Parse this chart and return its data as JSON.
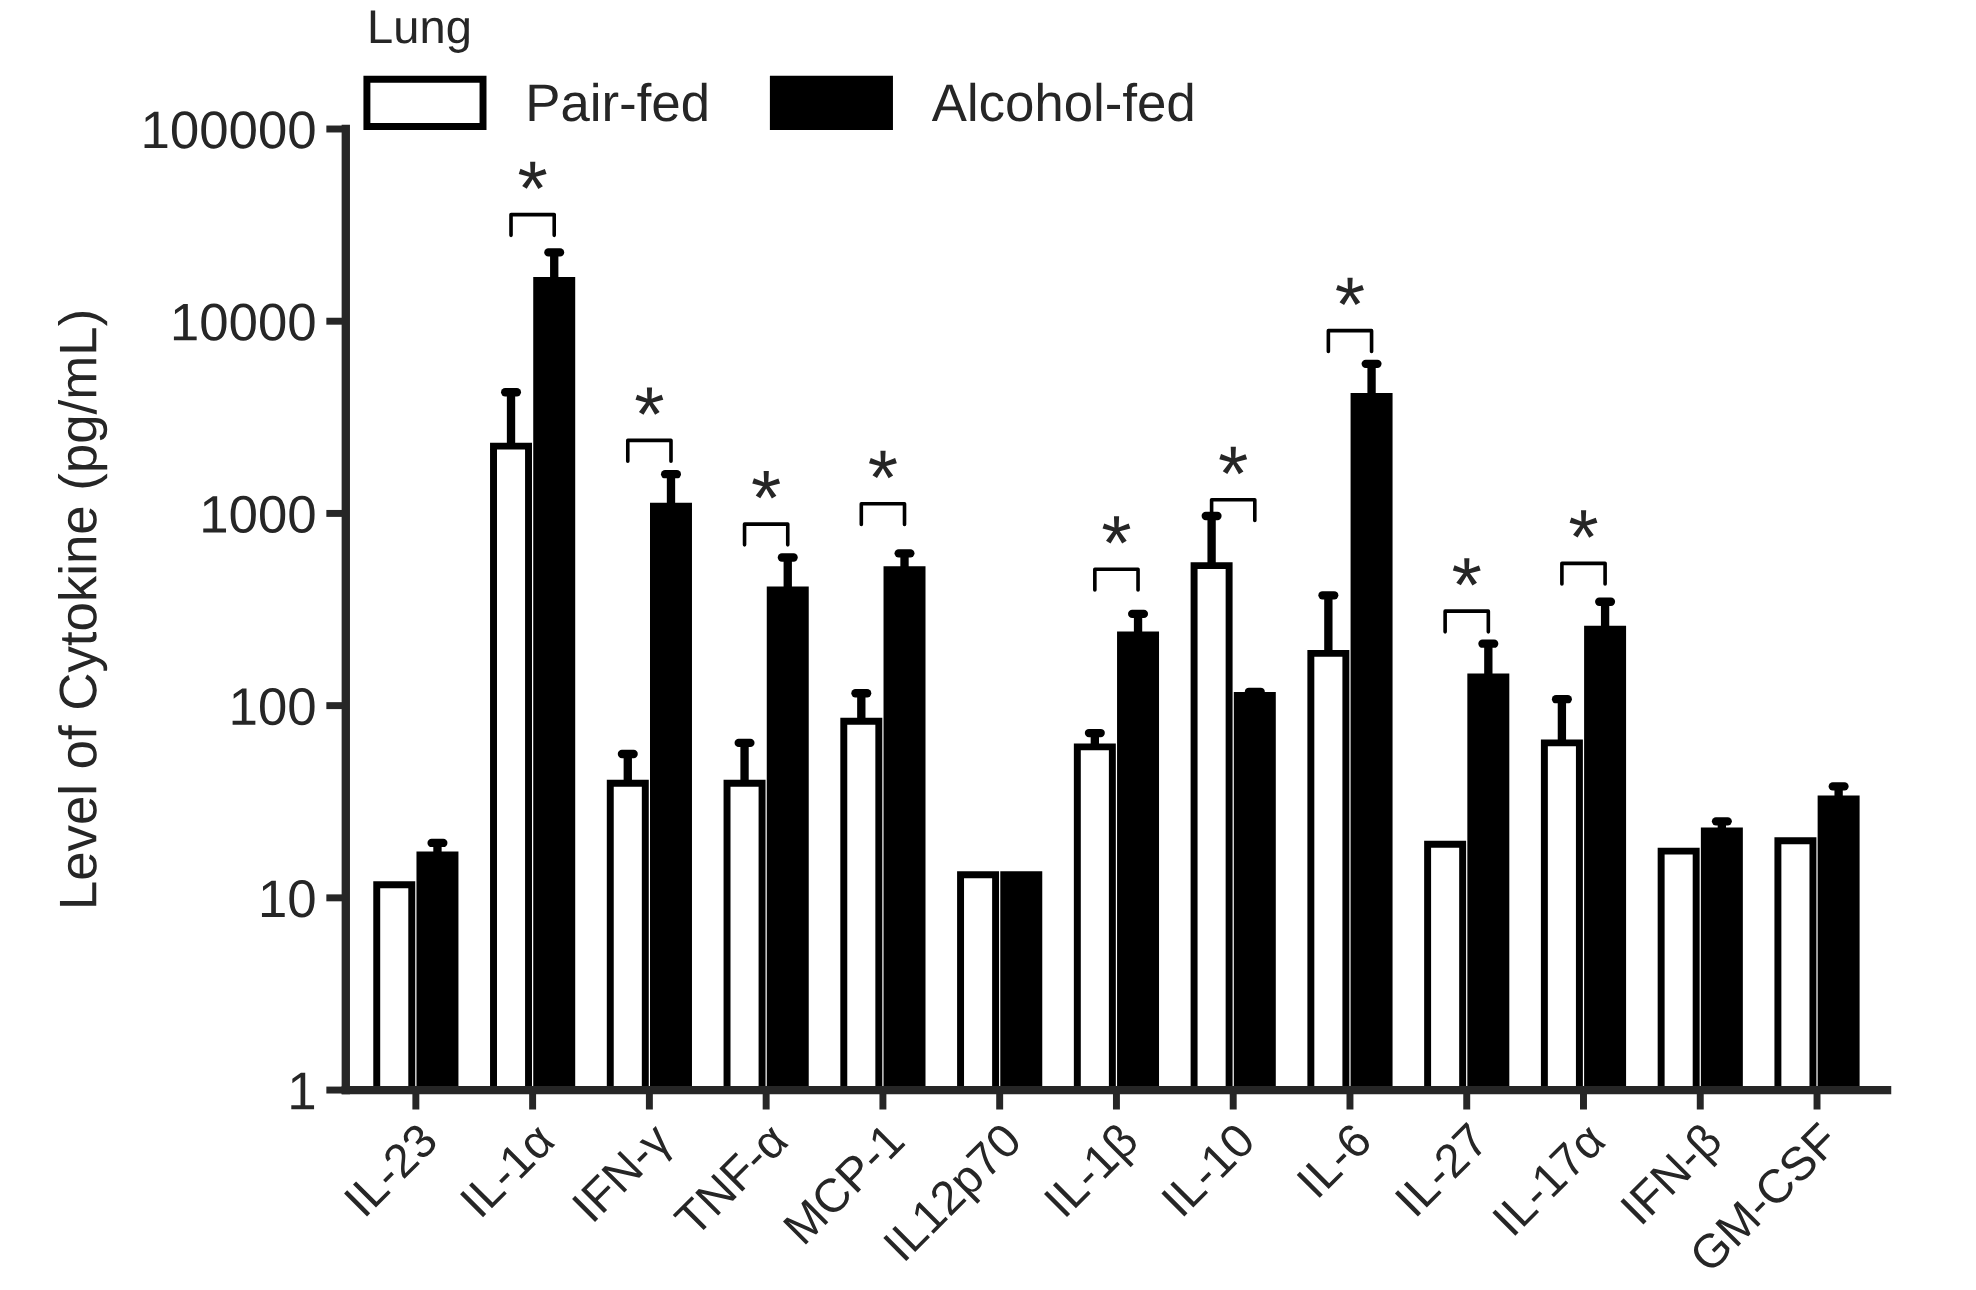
{
  "chart_data": {
    "type": "bar",
    "ylabel": "Level of Cytokine (pg/mL)",
    "legend_title": "Lung",
    "legend": "top left",
    "log": true,
    "categories": [
      "IL-23",
      "IL-1α",
      "IFN-γ",
      "TNF-α",
      "MCP-1",
      "IL12p70",
      "IL-1β",
      "IL-10",
      "IL-6",
      "IL-27",
      "IL-17α",
      "IFN-β",
      "GM-CSF"
    ],
    "ylim": [
      1,
      100000
    ],
    "yticks": [
      1,
      10,
      100,
      1000,
      10000,
      100000
    ],
    "grid": false,
    "series": [
      {
        "name": "Pair-fed",
        "color": "#ffffff",
        "values": [
          11.7,
          2240,
          39.5,
          39.5,
          83,
          13.2,
          61,
          535,
          187,
          19,
          64,
          17.5,
          19.8
        ],
        "errors": [
          null,
          [
            2240,
            4270
          ],
          [
            39.5,
            56
          ],
          [
            39.5,
            64
          ],
          [
            83,
            116
          ],
          null,
          [
            61,
            72
          ],
          [
            535,
            970
          ],
          [
            187,
            375
          ],
          null,
          [
            64,
            108
          ],
          null,
          null
        ]
      },
      {
        "name": "Alcohol-fed",
        "color": "#000000",
        "values": [
          16.7,
          16300,
          1090,
          400,
          510,
          13.2,
          233,
          113,
          4060,
          141,
          250,
          22.3,
          32.7
        ],
        "errors": [
          [
            16.7,
            19.3
          ],
          [
            16300,
            22800
          ],
          [
            1090,
            1600
          ],
          [
            400,
            590
          ],
          [
            510,
            620
          ],
          null,
          [
            233,
            300
          ],
          [
            113,
            118
          ],
          [
            4060,
            6000
          ],
          [
            141,
            210
          ],
          [
            250,
            347
          ],
          [
            22.3,
            25
          ],
          [
            32.7,
            38
          ]
        ]
      }
    ],
    "annotations": [
      {
        "text": "*",
        "x": "IL-1α",
        "y": 16300
      },
      {
        "text": "*",
        "x": "IFN-γ",
        "y": 1090
      },
      {
        "text": "*",
        "x": "TNF-α",
        "y": 400
      },
      {
        "text": "*",
        "x": "MCP-1",
        "y": 510
      },
      {
        "text": "*",
        "x": "IL-1β",
        "y": 233
      },
      {
        "text": "*",
        "x": "IL-10",
        "y": 535
      },
      {
        "text": "*",
        "x": "IL-6",
        "y": 4060
      },
      {
        "text": "*",
        "x": "IL-27",
        "y": 141
      },
      {
        "text": "*",
        "x": "IL-17α",
        "y": 250
      }
    ]
  }
}
